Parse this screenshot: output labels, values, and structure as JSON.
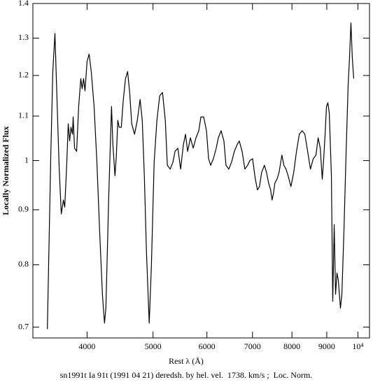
{
  "chart_data": {
    "type": "line",
    "y_label": "Locally Normalized Flux",
    "x_label": "Rest λ (Å)",
    "caption": "sn1991t Ia 91t (1991 04 21) deredsh. by hel. vel.  1738. km/s ;  Loc. Norm.",
    "xscale": "log",
    "yscale": "log",
    "color": "#000000",
    "xlim": [
      3330,
      10400
    ],
    "xticks": [
      4000,
      5000,
      6000,
      7000,
      8000,
      9000,
      {
        "value": 10000,
        "label": "10⁴"
      }
    ],
    "ylim": [
      0.684,
      1.4
    ],
    "yticks": [
      0.7,
      0.8,
      0.9,
      1,
      1.1,
      1.2,
      1.3,
      1.4
    ],
    "x": [
      3497,
      3538,
      3562,
      3588,
      3605,
      3640,
      3666,
      3692,
      3709,
      3735,
      3753,
      3771,
      3788,
      3807,
      3816,
      3834,
      3861,
      3888,
      3916,
      3934,
      3953,
      3972,
      4000,
      4028,
      4057,
      4096,
      4135,
      4174,
      4213,
      4243,
      4263,
      4304,
      4345,
      4365,
      4396,
      4417,
      4438,
      4459,
      4491,
      4522,
      4555,
      4588,
      4620,
      4652,
      4697,
      4741,
      4786,
      4821,
      4855,
      4890,
      4936,
      4972,
      5019,
      5066,
      5114,
      5163,
      5212,
      5248,
      5299,
      5349,
      5386,
      5438,
      5489,
      5541,
      5581,
      5621,
      5674,
      5728,
      5782,
      5837,
      5879,
      5934,
      5991,
      6034,
      6076,
      6133,
      6192,
      6236,
      6295,
      6355,
      6400,
      6461,
      6522,
      6584,
      6647,
      6694,
      6758,
      6822,
      6887,
      6936,
      7002,
      7068,
      7119,
      7168,
      7220,
      7288,
      7340,
      7393,
      7444,
      7480,
      7515,
      7551,
      7605,
      7659,
      7732,
      7785,
      7841,
      7897,
      7972,
      8048,
      8124,
      8201,
      8279,
      8357,
      8436,
      8516,
      8597,
      8679,
      8741,
      8804,
      8864,
      8908,
      8949,
      8992,
      9034,
      9077,
      9142,
      9184,
      9229,
      9272,
      9316,
      9359,
      9426,
      9472,
      9538,
      9606,
      9675,
      9720,
      9767,
      9812,
      9859
    ],
    "values": [
      0.697,
      1.012,
      1.21,
      1.313,
      1.192,
      0.982,
      0.892,
      0.919,
      0.905,
      0.997,
      1.082,
      1.043,
      1.074,
      1.058,
      1.098,
      1.027,
      1.02,
      1.123,
      1.192,
      1.166,
      1.192,
      1.161,
      1.237,
      1.256,
      1.21,
      1.123,
      0.997,
      0.859,
      0.751,
      0.706,
      0.729,
      0.926,
      1.123,
      1.035,
      0.968,
      1.012,
      1.09,
      1.074,
      1.074,
      1.14,
      1.192,
      1.21,
      1.157,
      1.082,
      1.058,
      1.09,
      1.14,
      1.09,
      0.968,
      0.822,
      0.706,
      0.797,
      0.997,
      1.09,
      1.149,
      1.157,
      1.09,
      0.99,
      0.982,
      0.997,
      1.02,
      1.027,
      0.982,
      1.035,
      1.058,
      1.02,
      1.05,
      1.027,
      1.05,
      1.066,
      1.098,
      1.098,
      1.066,
      1.004,
      0.99,
      1.004,
      1.027,
      1.05,
      1.066,
      1.043,
      0.99,
      0.982,
      0.997,
      1.02,
      1.035,
      1.043,
      1.02,
      0.982,
      0.99,
      1,
      1.004,
      0.961,
      0.939,
      0.946,
      0.975,
      0.99,
      0.975,
      0.953,
      0.939,
      0.919,
      0.932,
      0.953,
      0.961,
      0.975,
      1.012,
      0.99,
      0.982,
      0.968,
      0.946,
      0.975,
      1.02,
      1.058,
      1.066,
      1.058,
      1.02,
      0.982,
      1.004,
      1.012,
      1.05,
      1.027,
      0.961,
      1.004,
      1.058,
      1.123,
      1.132,
      1.107,
      0.968,
      0.74,
      0.872,
      0.751,
      0.786,
      0.774,
      0.729,
      0.751,
      0.859,
      1.012,
      1.175,
      1.247,
      1.343,
      1.247,
      1.192
    ]
  }
}
